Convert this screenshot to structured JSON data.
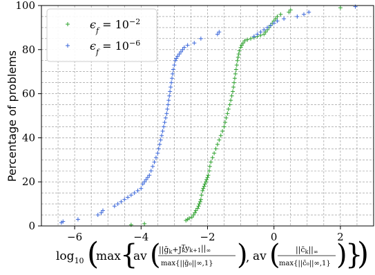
{
  "chart_data": {
    "type": "scatter",
    "title": "",
    "ylabel": "Percentage of problems",
    "xlabel": {
      "log": "log",
      "sub": "10",
      "max": "max",
      "av1": "av",
      "num1_main": "||ḡ",
      "num1_mid": "+J",
      "num1_T": "T",
      "num1_y": "y",
      "num1_tail": "||",
      "den1": "max{||ḡ₀||∞,1}",
      "sep": ",",
      "av2": "av",
      "num2": "||c̄",
      "den2": "max{||c̄₀||∞,1}",
      "sub_k": "k",
      "sub_k1": "k+1",
      "sub_inf": "∞"
    },
    "xlim": [
      -7,
      3
    ],
    "ylim": [
      0,
      100
    ],
    "xticks": [
      -6,
      -4,
      -2,
      0,
      2
    ],
    "xtick_labels": [
      "−6",
      "−4",
      "−2",
      "0",
      "2"
    ],
    "yticks": [
      0,
      20,
      40,
      60,
      80,
      100
    ],
    "ytick_labels": [
      "0",
      "20",
      "40",
      "60",
      "80",
      "100"
    ],
    "grid": true,
    "legend_position": "top-left",
    "series": [
      {
        "name": "ε_f = 10^-2",
        "name_base": "ϵ",
        "name_sub": "f",
        "name_eq": " = 10",
        "name_exp": "−2",
        "color": "#2ca02c",
        "x": [
          -4.3,
          -3.9,
          -2.65,
          -2.6,
          -2.55,
          -2.47,
          -2.42,
          -2.38,
          -2.35,
          -2.3,
          -2.27,
          -2.25,
          -2.22,
          -2.2,
          -2.18,
          -2.15,
          -2.13,
          -2.1,
          -2.08,
          -2.05,
          -2.03,
          -2.0,
          -1.98,
          -1.95,
          -1.93,
          -1.9,
          -1.85,
          -1.8,
          -1.75,
          -1.7,
          -1.65,
          -1.6,
          -1.55,
          -1.5,
          -1.47,
          -1.44,
          -1.4,
          -1.37,
          -1.33,
          -1.3,
          -1.27,
          -1.24,
          -1.22,
          -1.2,
          -1.18,
          -1.16,
          -1.14,
          -1.12,
          -1.1,
          -1.08,
          -1.06,
          -1.04,
          -1.0,
          -0.97,
          -0.93,
          -0.88,
          -0.8,
          -0.7,
          -0.6,
          -0.5,
          -0.4,
          -0.3,
          -0.25,
          -0.2,
          -0.15,
          -0.1,
          -0.05,
          0.0,
          0.05,
          0.1,
          0.2,
          0.45,
          0.5,
          2.0
        ],
        "y": [
          0.5,
          1,
          2.5,
          3,
          3.5,
          4,
          5,
          6,
          7,
          8,
          9,
          10,
          11,
          12,
          14,
          16,
          17,
          18,
          19,
          20,
          21,
          22,
          23,
          25,
          27,
          29,
          31,
          33,
          35,
          37,
          39,
          41,
          43,
          45,
          47,
          49,
          51,
          53,
          55,
          57,
          59,
          61,
          63,
          65,
          67,
          69,
          71,
          73,
          75,
          76.5,
          78,
          79.5,
          81,
          82,
          83,
          84,
          84.5,
          85,
          85.5,
          86,
          86.5,
          87,
          88,
          89,
          90,
          91,
          92,
          93,
          94,
          95,
          96,
          97,
          98,
          99
        ]
      },
      {
        "name": "ε_f = 10^-6",
        "name_base": "ϵ",
        "name_sub": "f",
        "name_eq": " = 10",
        "name_exp": "−6",
        "color": "#3a66d9",
        "x": [
          -6.4,
          -6.35,
          -5.9,
          -5.3,
          -5.2,
          -5.15,
          -4.8,
          -4.7,
          -4.6,
          -4.5,
          -4.4,
          -4.3,
          -4.2,
          -4.1,
          -4.0,
          -3.95,
          -3.9,
          -3.85,
          -3.8,
          -3.75,
          -3.7,
          -3.65,
          -3.6,
          -3.55,
          -3.5,
          -3.47,
          -3.44,
          -3.41,
          -3.38,
          -3.35,
          -3.32,
          -3.29,
          -3.26,
          -3.23,
          -3.21,
          -3.19,
          -3.17,
          -3.15,
          -3.13,
          -3.11,
          -3.09,
          -3.07,
          -3.05,
          -3.03,
          -3.0,
          -2.97,
          -2.94,
          -2.9,
          -2.85,
          -2.8,
          -2.75,
          -2.7,
          -2.6,
          -2.4,
          -2.2,
          -1.7,
          -1.65,
          -0.6,
          -0.5,
          -0.4,
          -0.3,
          -0.2,
          -0.1,
          0.0,
          0.1,
          0.3,
          0.7,
          0.9,
          1.05,
          2.45
        ],
        "y": [
          1.5,
          2,
          3,
          5,
          6,
          7,
          9,
          10,
          11,
          12,
          13,
          14,
          15,
          16,
          17,
          19,
          20,
          21,
          22,
          23,
          25,
          27,
          29,
          31,
          33,
          35,
          37,
          39,
          41,
          43,
          45,
          47,
          49,
          51,
          53,
          55,
          57,
          59,
          61,
          63,
          65,
          67,
          69,
          71,
          73,
          75,
          76,
          77,
          78,
          79,
          80,
          81,
          82,
          83,
          85,
          87,
          88,
          86,
          87,
          88,
          89,
          90,
          91,
          92,
          93,
          94,
          95,
          96,
          97,
          99.5
        ]
      }
    ]
  }
}
